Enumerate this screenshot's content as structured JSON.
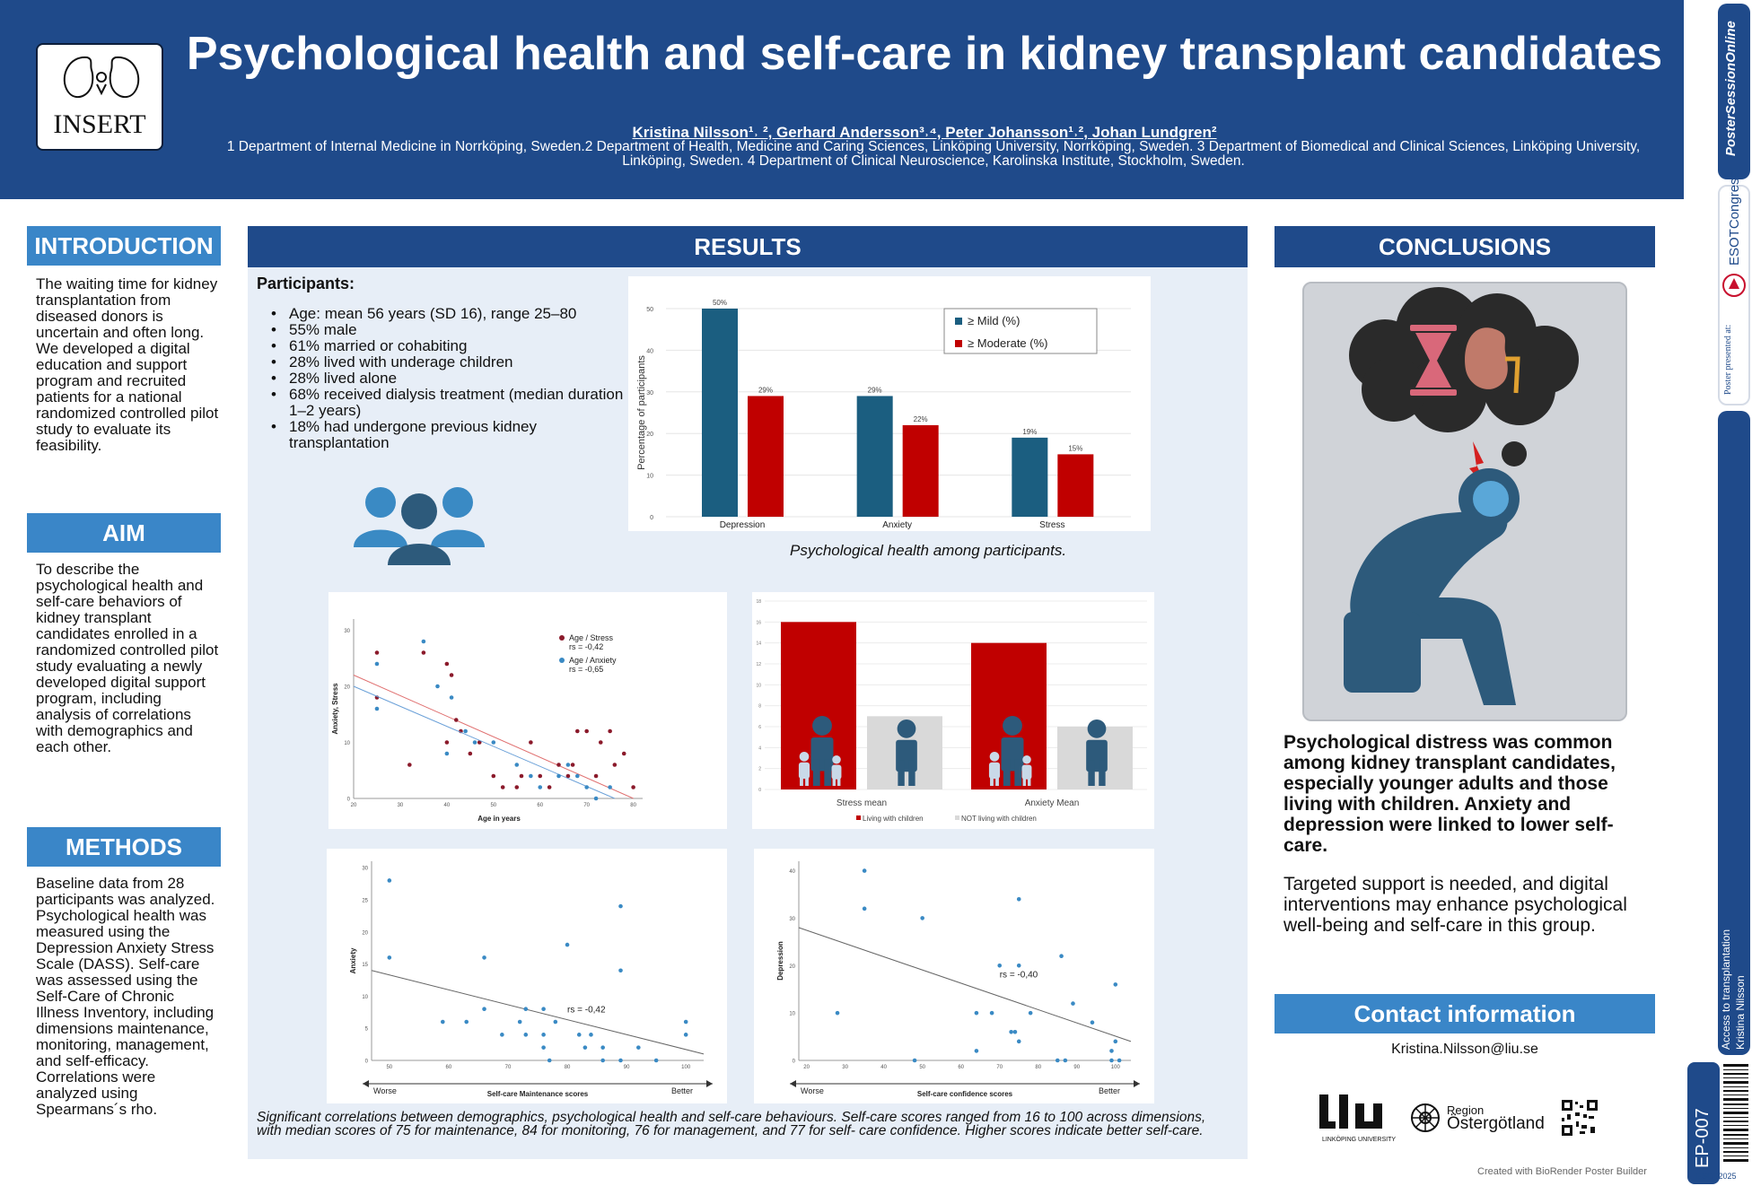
{
  "header": {
    "logo_text": "INSERT",
    "title": "Psychological health and self-care in kidney transplant candidates",
    "authors": "Kristina Nilsson¹˒ ², Gerhard Andersson³˒⁴, Peter Johansson¹˒², Johan Lundgren²",
    "affiliations": "1 Department of Internal Medicine in Norrköping, Sweden.2 Department of Health, Medicine and Caring Sciences, Linköping University, Norrköping, Sweden. 3 Department of Biomedical and Clinical Sciences, Linköping University, Linköping, Sweden. 4 Department of Clinical Neuroscience, Karolinska Institute, Stockholm, Sweden."
  },
  "sidebar": {
    "poster_session": "PosterSessionOnline",
    "presented_at": "Poster presented at:",
    "congress": "ESOTCongress",
    "topic": "Access to transplantation",
    "author": "Kristina Nilsson",
    "poster_id": "EP-007",
    "event": "ESOT2025"
  },
  "introduction": {
    "heading": "INTRODUCTION",
    "text": "The waiting time for kidney transplantation from diseased donors is uncertain and often long. We developed a digital education and support program and recruited patients for a national randomized controlled pilot study to evaluate its feasibility."
  },
  "aim": {
    "heading": "AIM",
    "text": "To describe the psychological health and self-care behaviors of kidney transplant candidates enrolled in a randomized controlled pilot study evaluating a newly developed digital support program, including analysis of correlations with demographics and each other."
  },
  "methods": {
    "heading": "METHODS",
    "text": "Baseline data from 28 participants was analyzed. Psychological health was measured using the Depression Anxiety Stress Scale (DASS). Self-care was assessed using the Self-Care of Chronic Illness Inventory, including dimensions maintenance, monitoring, management, and self-efficacy. Correlations were analyzed using Spearmans´s rho."
  },
  "results": {
    "heading": "RESULTS",
    "participants_title": "Participants:",
    "participants": [
      "Age: mean 56 years (SD 16), range 25–80",
      "55% male",
      "61% married or cohabiting",
      "28% lived with underage children",
      "28% lived alone",
      "68% received dialysis treatment (median duration 1–2 years)",
      "18% had undergone previous kidney transplantation"
    ],
    "caption_top": "Psychological health among participants.",
    "caption_bottom": "Significant correlations between demographics, psychological health and self-care behaviours. Self-care scores ranged from 16 to 100 across dimensions, with median scores of  75 for maintenance, 84 for monitoring, 76 for management, and 77 for self- care confidence. Higher scores indicate better self-care."
  },
  "conclusions": {
    "heading": "CONCLUSIONS",
    "bold_text": "Psychological distress was common among kidney transplant candidates, especially younger adults and those living with children. Anxiety and depression were linked to lower self-care.",
    "text": "Targeted support is needed, and digital interventions may enhance psychological well-being and self-care in this group."
  },
  "contact": {
    "heading": "Contact information",
    "email": "Kristina.Nilsson@liu.se",
    "liu_name": "LINKÖPING UNIVERSITY",
    "region_line1": "Region",
    "region_line2": "Östergötland"
  },
  "footer": {
    "credit": "Created with BioRender Poster Builder"
  },
  "colors": {
    "navy": "#1f4a8a",
    "light_blue": "#3a86c8",
    "teal": "#1b5e80",
    "red": "#c00000",
    "grey": "#d9d9d9",
    "dot_red": "#8b1a2b",
    "dot_blue": "#3a8ac4"
  },
  "chart_data": [
    {
      "type": "bar",
      "categories": [
        "Depression",
        "Anxiety",
        "Stress"
      ],
      "series": [
        {
          "name": "≥ Mild (%)",
          "values": [
            50,
            29,
            19
          ],
          "labels": [
            "50%",
            "29%",
            "19%"
          ]
        },
        {
          "name": "≥ Moderate (%)",
          "values": [
            29,
            22,
            15
          ],
          "labels": [
            "29%",
            "22%",
            "15%"
          ]
        }
      ],
      "ylabel": "Percentage of participants",
      "ylim": [
        0,
        50
      ],
      "yticks": [
        0,
        10,
        20,
        30,
        40,
        50
      ],
      "legend": "top-right"
    },
    {
      "type": "scatter",
      "xlabel": "Age in years",
      "ylabel": "Anxiety, Stress",
      "xlim": [
        20,
        82
      ],
      "ylim": [
        0,
        32
      ],
      "xticks": [
        20,
        30,
        40,
        50,
        60,
        70,
        80
      ],
      "yticks": [
        0,
        10,
        20,
        30
      ],
      "series": [
        {
          "name": "Age / Stress",
          "r_label": "rs = -0,42",
          "fit": [
            [
              20,
              22
            ],
            [
              80,
              0
            ]
          ],
          "points": [
            [
              25,
              26
            ],
            [
              25,
              18
            ],
            [
              32,
              6
            ],
            [
              35,
              26
            ],
            [
              40,
              10
            ],
            [
              40,
              24
            ],
            [
              41,
              22
            ],
            [
              42,
              14
            ],
            [
              43,
              12
            ],
            [
              45,
              8
            ],
            [
              47,
              10
            ],
            [
              50,
              4
            ],
            [
              52,
              2
            ],
            [
              55,
              2
            ],
            [
              56,
              4
            ],
            [
              58,
              10
            ],
            [
              60,
              4
            ],
            [
              62,
              2
            ],
            [
              64,
              6
            ],
            [
              66,
              4
            ],
            [
              67,
              6
            ],
            [
              68,
              12
            ],
            [
              70,
              12
            ],
            [
              72,
              4
            ],
            [
              73,
              10
            ],
            [
              75,
              12
            ],
            [
              76,
              6
            ],
            [
              78,
              8
            ],
            [
              80,
              2
            ]
          ]
        },
        {
          "name": "Age / Anxiety",
          "r_label": "rs = -0,65",
          "fit": [
            [
              20,
              20
            ],
            [
              76,
              0
            ]
          ],
          "points": [
            [
              25,
              24
            ],
            [
              25,
              16
            ],
            [
              35,
              28
            ],
            [
              38,
              20
            ],
            [
              40,
              8
            ],
            [
              41,
              18
            ],
            [
              44,
              12
            ],
            [
              46,
              10
            ],
            [
              50,
              10
            ],
            [
              55,
              6
            ],
            [
              58,
              4
            ],
            [
              60,
              2
            ],
            [
              64,
              4
            ],
            [
              66,
              6
            ],
            [
              68,
              4
            ],
            [
              70,
              2
            ],
            [
              72,
              0
            ],
            [
              75,
              2
            ]
          ]
        }
      ]
    },
    {
      "type": "bar",
      "categories": [
        "Stress mean",
        "Anxiety Mean"
      ],
      "series": [
        {
          "name": "Living with children",
          "values": [
            16,
            14
          ]
        },
        {
          "name": "NOT living with children",
          "values": [
            7,
            6
          ]
        }
      ],
      "ylim": [
        0,
        18
      ],
      "yticks": [
        0,
        2,
        4,
        6,
        8,
        10,
        12,
        14,
        16,
        18
      ],
      "legend": "bottom"
    },
    {
      "type": "scatter",
      "xlabel": "Self-care Maintenance scores",
      "ylabel": "Anxiety",
      "xlim": [
        47,
        103
      ],
      "ylim": [
        0,
        31
      ],
      "xticks": [
        50,
        60,
        70,
        80,
        90,
        100
      ],
      "yticks": [
        0,
        5,
        10,
        15,
        20,
        25,
        30
      ],
      "arrow_left": "Worse",
      "arrow_right": "Better",
      "r_label": "rs = -0,42",
      "fit": [
        [
          47,
          14
        ],
        [
          103,
          1
        ]
      ],
      "points": [
        [
          50,
          28
        ],
        [
          50,
          16
        ],
        [
          59,
          6
        ],
        [
          63,
          6
        ],
        [
          66,
          8
        ],
        [
          66,
          16
        ],
        [
          69,
          4
        ],
        [
          72,
          6
        ],
        [
          73,
          8
        ],
        [
          73,
          4
        ],
        [
          76,
          8
        ],
        [
          76,
          2
        ],
        [
          76,
          4
        ],
        [
          77,
          0
        ],
        [
          78,
          6
        ],
        [
          80,
          18
        ],
        [
          82,
          4
        ],
        [
          83,
          2
        ],
        [
          84,
          4
        ],
        [
          86,
          0
        ],
        [
          86,
          2
        ],
        [
          89,
          24
        ],
        [
          89,
          14
        ],
        [
          89,
          0
        ],
        [
          92,
          2
        ],
        [
          95,
          0
        ],
        [
          100,
          6
        ],
        [
          100,
          4
        ]
      ]
    },
    {
      "type": "scatter",
      "xlabel": "Self-care confidence scores",
      "ylabel": "Depression",
      "xlim": [
        18,
        104
      ],
      "ylim": [
        0,
        42
      ],
      "xticks": [
        20,
        30,
        40,
        50,
        60,
        70,
        80,
        90,
        100
      ],
      "yticks": [
        0,
        10,
        20,
        30,
        40
      ],
      "arrow_left": "Worse",
      "arrow_right": "Better",
      "r_label": "rs = -0,40",
      "fit": [
        [
          18,
          28
        ],
        [
          104,
          4
        ]
      ],
      "points": [
        [
          28,
          10
        ],
        [
          35,
          40
        ],
        [
          35,
          32
        ],
        [
          48,
          0
        ],
        [
          50,
          30
        ],
        [
          64,
          10
        ],
        [
          64,
          2
        ],
        [
          68,
          10
        ],
        [
          70,
          20
        ],
        [
          73,
          6
        ],
        [
          74,
          6
        ],
        [
          75,
          20
        ],
        [
          75,
          4
        ],
        [
          75,
          34
        ],
        [
          78,
          10
        ],
        [
          85,
          0
        ],
        [
          86,
          22
        ],
        [
          87,
          0
        ],
        [
          89,
          12
        ],
        [
          94,
          8
        ],
        [
          99,
          0
        ],
        [
          99,
          2
        ],
        [
          100,
          4
        ],
        [
          100,
          16
        ],
        [
          101,
          0
        ]
      ]
    }
  ]
}
